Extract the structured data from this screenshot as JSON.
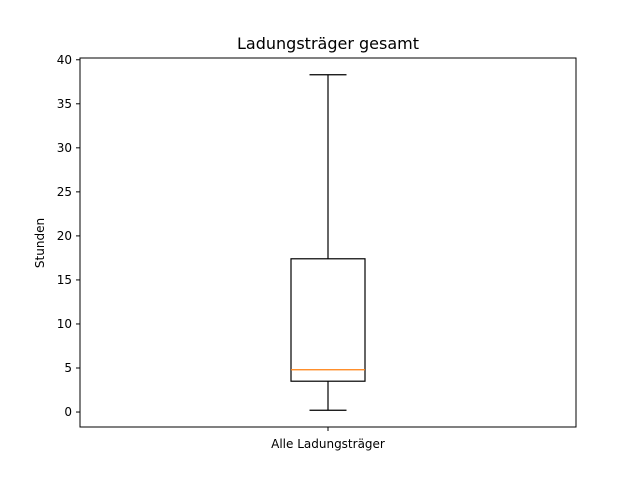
{
  "chart_data": {
    "type": "boxplot",
    "title": "Ladungsträger gesamt",
    "xlabel": "",
    "ylabel": "Stunden",
    "categories": [
      "Alle Ladungsträger"
    ],
    "boxes": [
      {
        "category": "Alle Ladungsträger",
        "whisker_low": 0.2,
        "q1": 3.5,
        "median": 4.8,
        "q3": 17.4,
        "whisker_high": 38.3
      }
    ],
    "ylim": [
      -1.7,
      40.2
    ],
    "yticks": [
      0,
      5,
      10,
      15,
      20,
      25,
      30,
      35,
      40
    ],
    "grid": false,
    "colors": {
      "box": "#000000",
      "median": "#ff7f0e",
      "whisker": "#000000"
    }
  }
}
